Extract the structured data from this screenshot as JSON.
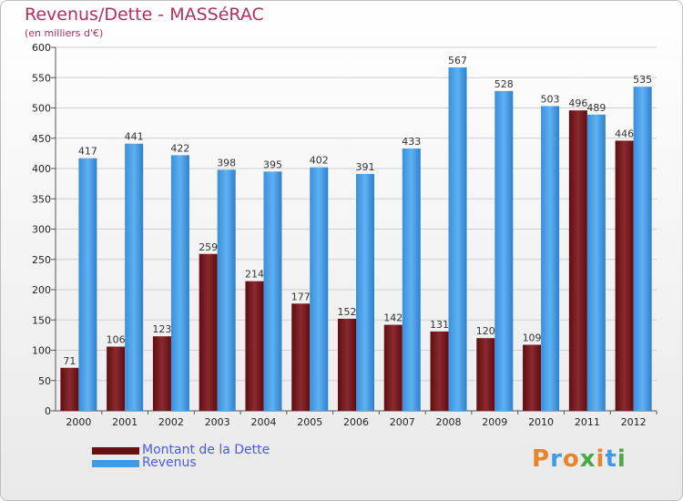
{
  "header": {
    "title": "Revenus/Dette - MASSéRAC",
    "subtitle": "(en milliers d'€)"
  },
  "legend": {
    "items": [
      {
        "label": "Montant de la Dette",
        "color": "#6a0f14"
      },
      {
        "label": "Revenus",
        "color": "#3f9be8"
      }
    ]
  },
  "brand": {
    "text": "Proxiti"
  },
  "colors": {
    "dette": "#7a1a1e",
    "revenus": "#4aa3ea",
    "title": "#b03060",
    "legend_text": "#4a5ae8"
  },
  "chart_data": {
    "type": "bar",
    "categories": [
      "2000",
      "2001",
      "2002",
      "2003",
      "2004",
      "2005",
      "2006",
      "2007",
      "2008",
      "2009",
      "2010",
      "2011",
      "2012"
    ],
    "series": [
      {
        "name": "Montant de la Dette",
        "values": [
          71,
          106,
          123,
          259,
          214,
          177,
          152,
          142,
          131,
          120,
          109,
          496,
          446
        ]
      },
      {
        "name": "Revenus",
        "values": [
          417,
          441,
          422,
          398,
          395,
          402,
          391,
          433,
          567,
          528,
          503,
          489,
          535
        ]
      }
    ],
    "title": "Revenus/Dette - MASSéRAC",
    "subtitle": "(en milliers d'€)",
    "xlabel": "",
    "ylabel": "",
    "ylim": [
      0,
      600
    ],
    "yticks": [
      0,
      50,
      100,
      150,
      200,
      250,
      300,
      350,
      400,
      450,
      500,
      550,
      600
    ],
    "grid": true,
    "legend_position": "bottom-left"
  }
}
